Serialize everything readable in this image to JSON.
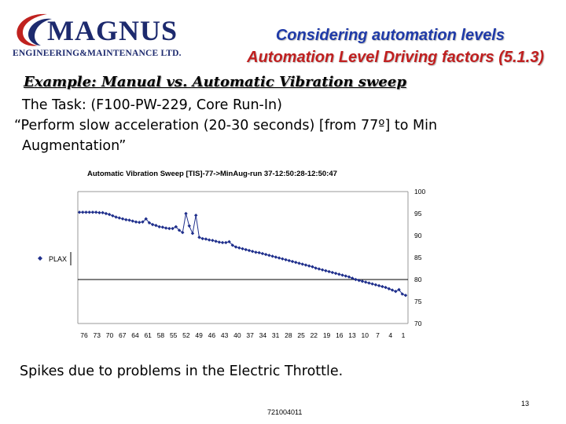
{
  "logo": {
    "name": "MAGNUS",
    "subtitle": "ENGINEERING&MAINTENANCE LTD."
  },
  "header": {
    "title": "Considering automation levels",
    "subtitle": "Automation Level Driving factors (5.1.3)"
  },
  "example": "Example: Manual vs. Automatic Vibration sweep",
  "task": {
    "line1": "The Task: (F100-PW-229, Core Run-In)",
    "line2": "“Perform slow acceleration (20-30 seconds) [from 77º] to Min",
    "line3": "Augmentation”"
  },
  "caption": "Spikes due to problems in the Electric Throttle.",
  "footer": {
    "page_number": "13",
    "doc_number": "721004011"
  },
  "chart_data": {
    "type": "line",
    "title": "Automatic Vibration Sweep [TIS]-77->MinAug-run 37-12:50:28-12:50:47",
    "xlabel": "",
    "ylabel": "",
    "x_tick_labels": [
      "76",
      "73",
      "70",
      "67",
      "64",
      "61",
      "58",
      "55",
      "52",
      "49",
      "46",
      "43",
      "40",
      "37",
      "34",
      "31",
      "28",
      "25",
      "22",
      "19",
      "16",
      "13",
      "10",
      "7",
      "4",
      "1"
    ],
    "y_axis_position": "right",
    "ylim": [
      70,
      100
    ],
    "yticks": [
      70,
      75,
      80,
      85,
      90,
      95,
      100
    ],
    "reference_line": 80,
    "grid": false,
    "legend_position": "left",
    "series": [
      {
        "name": "PLAX",
        "color": "#1f2f8c",
        "values": [
          95.3,
          95.3,
          95.3,
          95.3,
          95.3,
          95.3,
          95.2,
          95.2,
          95.0,
          94.8,
          94.5,
          94.2,
          94.0,
          93.8,
          93.6,
          93.5,
          93.3,
          93.1,
          93.0,
          93.1,
          93.8,
          92.9,
          92.5,
          92.3,
          92.0,
          91.9,
          91.7,
          91.6,
          91.6,
          92.0,
          91.2,
          90.7,
          95.0,
          92.2,
          90.5,
          94.6,
          89.6,
          89.3,
          89.2,
          89.0,
          88.9,
          88.7,
          88.5,
          88.4,
          88.4,
          88.6,
          87.8,
          87.4,
          87.2,
          87.0,
          86.8,
          86.6,
          86.4,
          86.2,
          86.1,
          85.9,
          85.7,
          85.5,
          85.3,
          85.1,
          84.9,
          84.7,
          84.5,
          84.3,
          84.1,
          83.9,
          83.7,
          83.5,
          83.3,
          83.1,
          82.9,
          82.6,
          82.4,
          82.2,
          82.0,
          81.8,
          81.6,
          81.4,
          81.2,
          81.0,
          80.8,
          80.6,
          80.3,
          80.0,
          79.8,
          79.6,
          79.4,
          79.2,
          79.0,
          78.8,
          78.6,
          78.4,
          78.2,
          77.9,
          77.6,
          77.3,
          77.7,
          76.7,
          76.4
        ]
      }
    ]
  }
}
